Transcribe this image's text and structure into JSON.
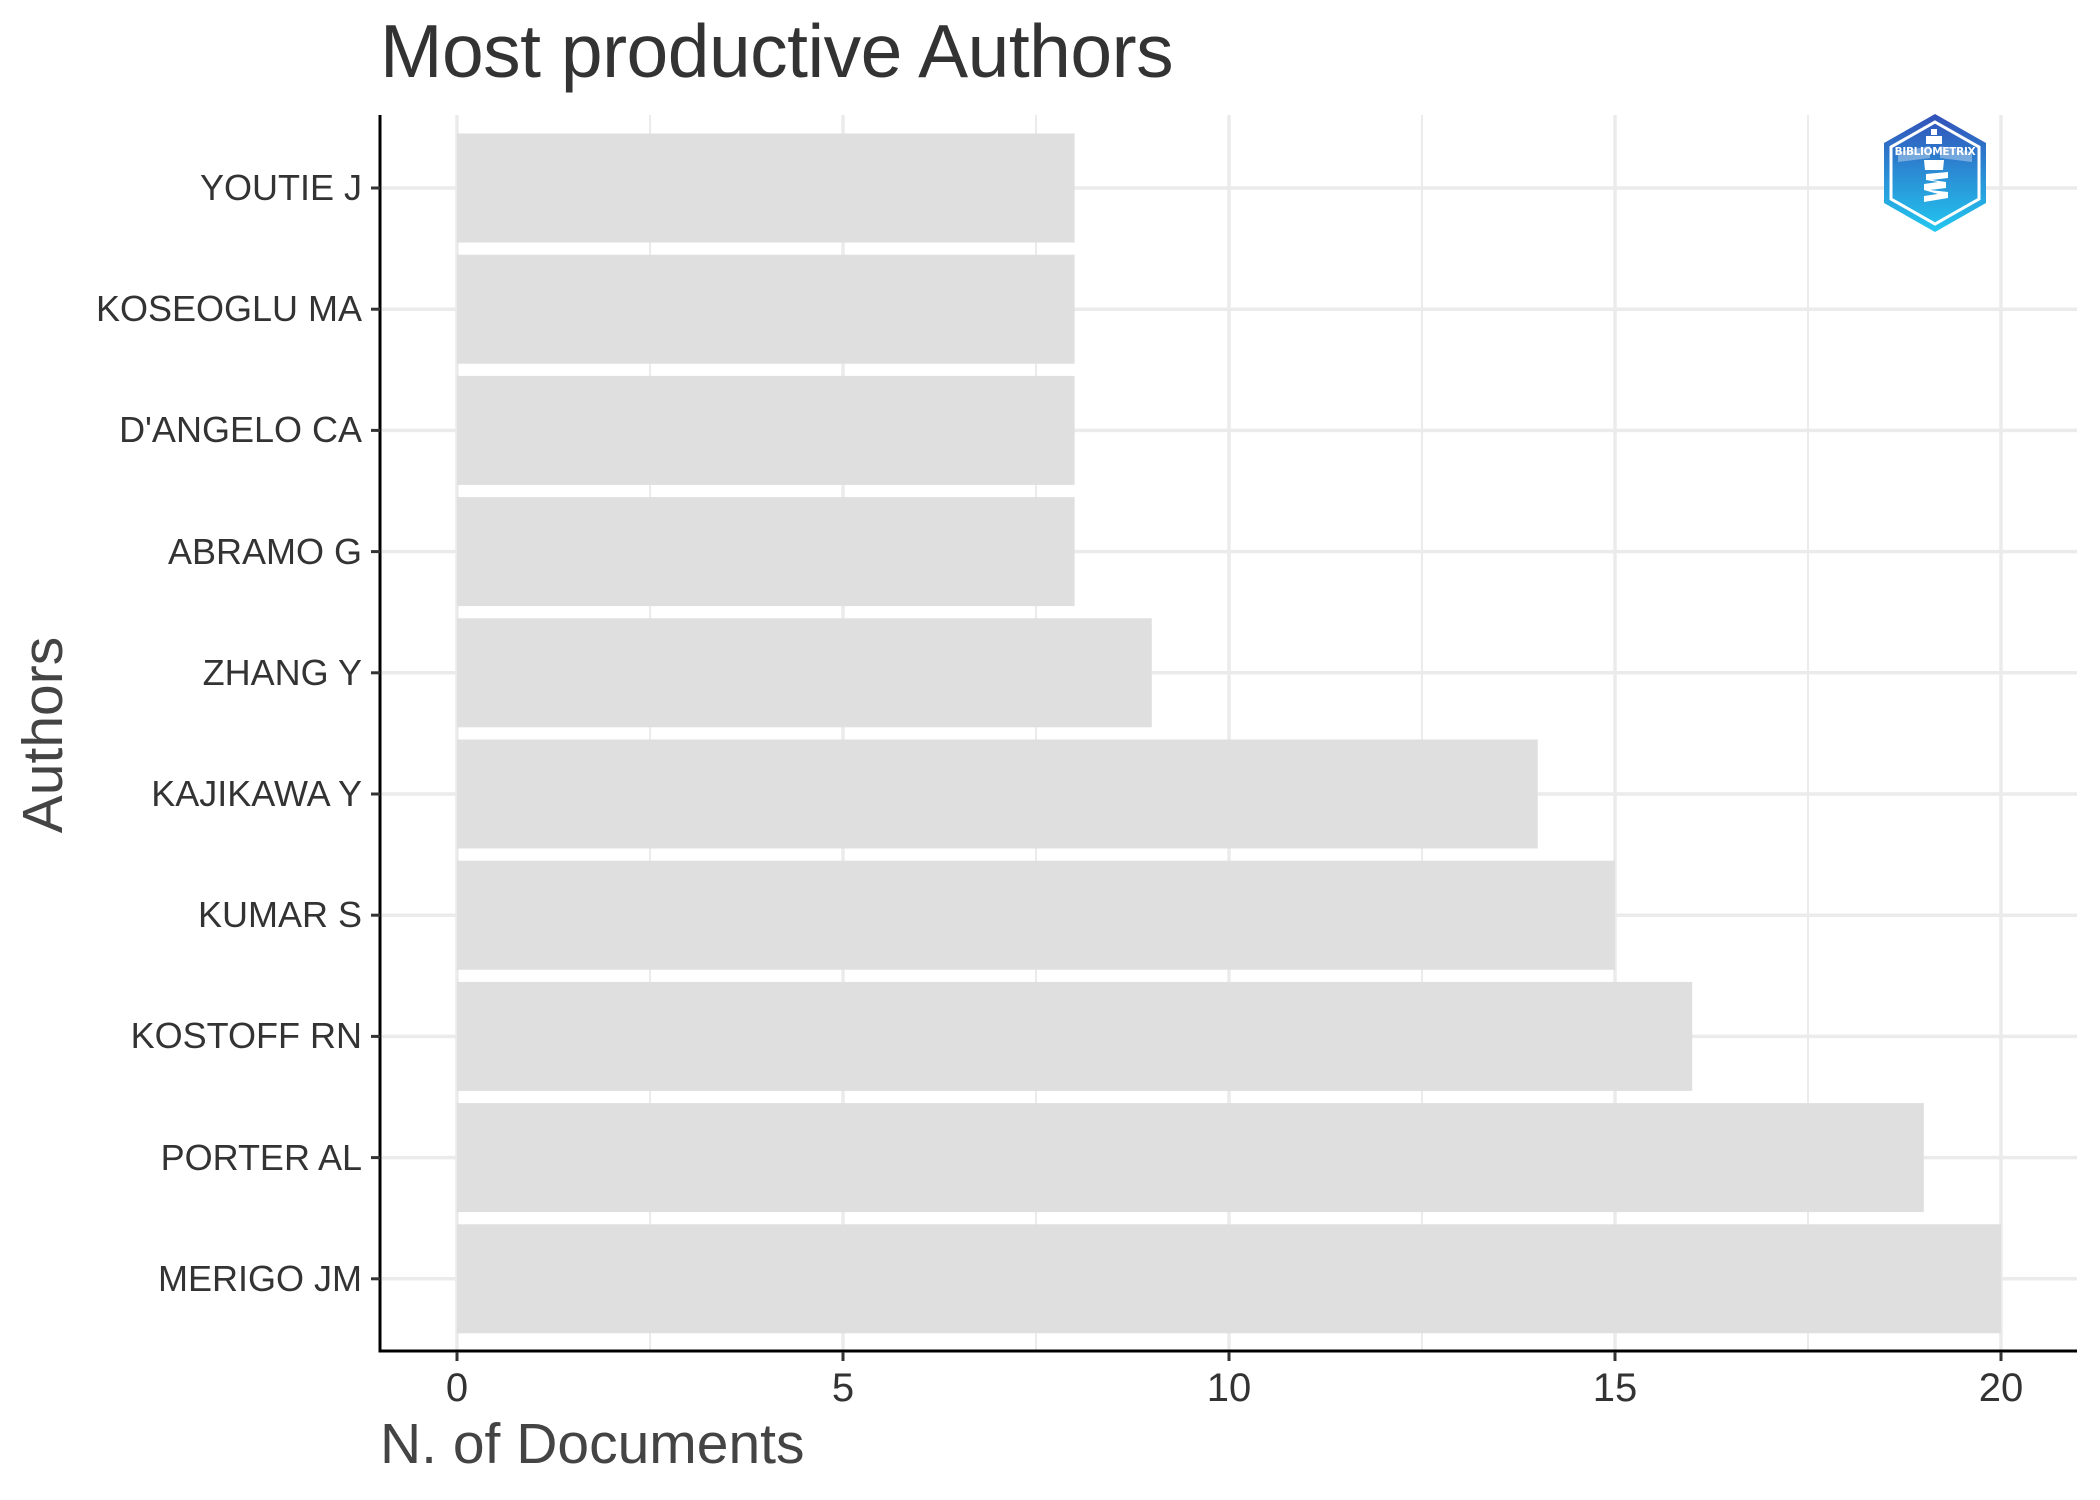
{
  "header": {
    "title": "Most productive Authors"
  },
  "axes": {
    "x_title": "N. of Documents",
    "y_title": "Authors",
    "x_ticks": [
      "0",
      "5",
      "10",
      "15",
      "20"
    ]
  },
  "logo": {
    "text": "BIBLIOMETRIX",
    "icon": "bibliometrix-lighthouse-logo",
    "gradient_top": "#3350B8",
    "gradient_bottom": "#22C8F0"
  },
  "colors": {
    "bar": "#DFDFDF",
    "grid": "#EBEBEB",
    "axis": "#000000",
    "text": "#333333"
  },
  "chart_data": {
    "type": "bar",
    "orientation": "horizontal",
    "title": "Most productive Authors",
    "xlabel": "N. of Documents",
    "ylabel": "Authors",
    "categories": [
      "YOUTIE J",
      "KOSEOGLU MA",
      "D'ANGELO CA",
      "ABRAMO G",
      "ZHANG Y",
      "KAJIKAWA Y",
      "KUMAR S",
      "KOSTOFF RN",
      "PORTER AL",
      "MERIGO JM"
    ],
    "values": [
      8,
      8,
      8,
      8,
      9,
      14,
      15,
      16,
      19,
      20
    ],
    "xlim": [
      -1,
      21
    ],
    "x_ticks": [
      0,
      5,
      10,
      15,
      20
    ],
    "grid": true,
    "legend": "none"
  }
}
